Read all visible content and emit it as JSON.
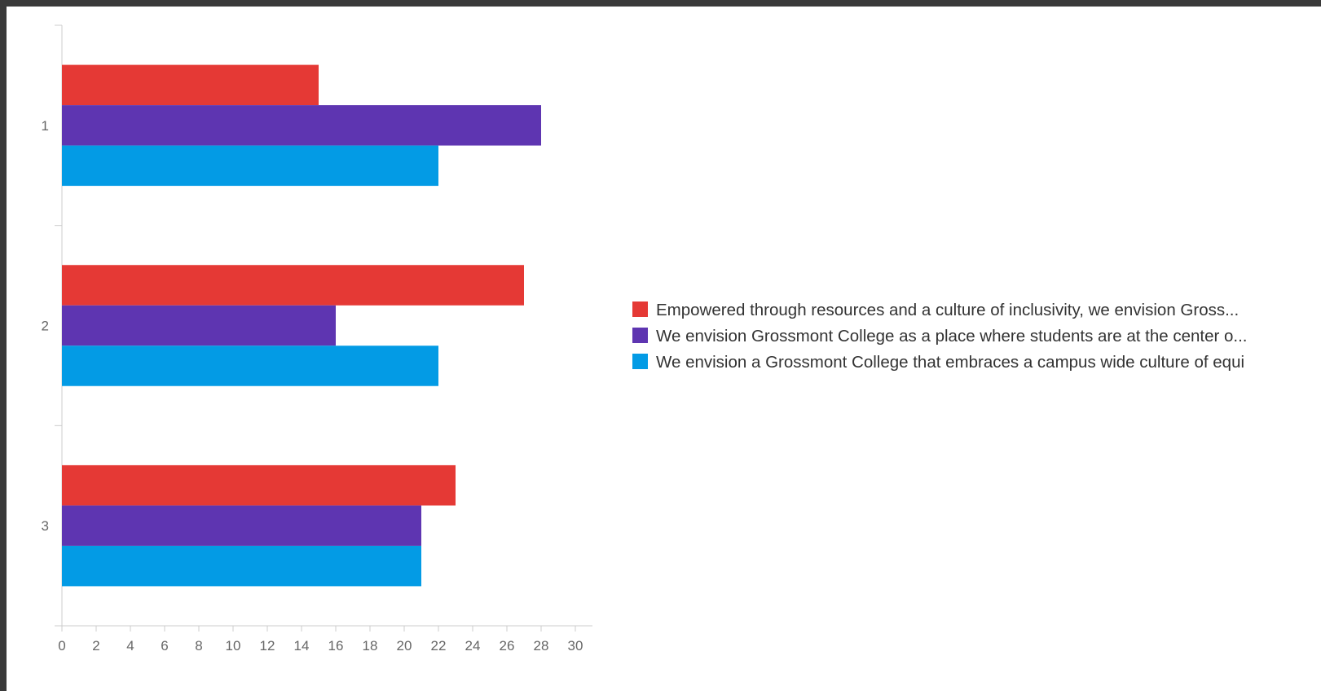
{
  "chart_data": {
    "type": "bar",
    "orientation": "horizontal",
    "categories": [
      "1",
      "2",
      "3"
    ],
    "series": [
      {
        "name": "Empowered through resources and a culture of inclusivity, we envision Gross...",
        "color": "#e53935",
        "values": [
          15,
          27,
          23
        ]
      },
      {
        "name": "We envision Grossmont College as a place where students are at the center o...",
        "color": "#5e35b1",
        "values": [
          28,
          16,
          21
        ]
      },
      {
        "name": "We envision a Grossmont College that embraces a campus wide culture of equi",
        "color": "#039be5",
        "values": [
          22,
          22,
          21
        ]
      }
    ],
    "xlim": [
      0,
      31
    ],
    "xticks": [
      0,
      2,
      4,
      6,
      8,
      10,
      12,
      14,
      16,
      18,
      20,
      22,
      24,
      26,
      28,
      30
    ],
    "title": "",
    "xlabel": "",
    "ylabel": "",
    "grid": false,
    "legend_position": "right"
  }
}
